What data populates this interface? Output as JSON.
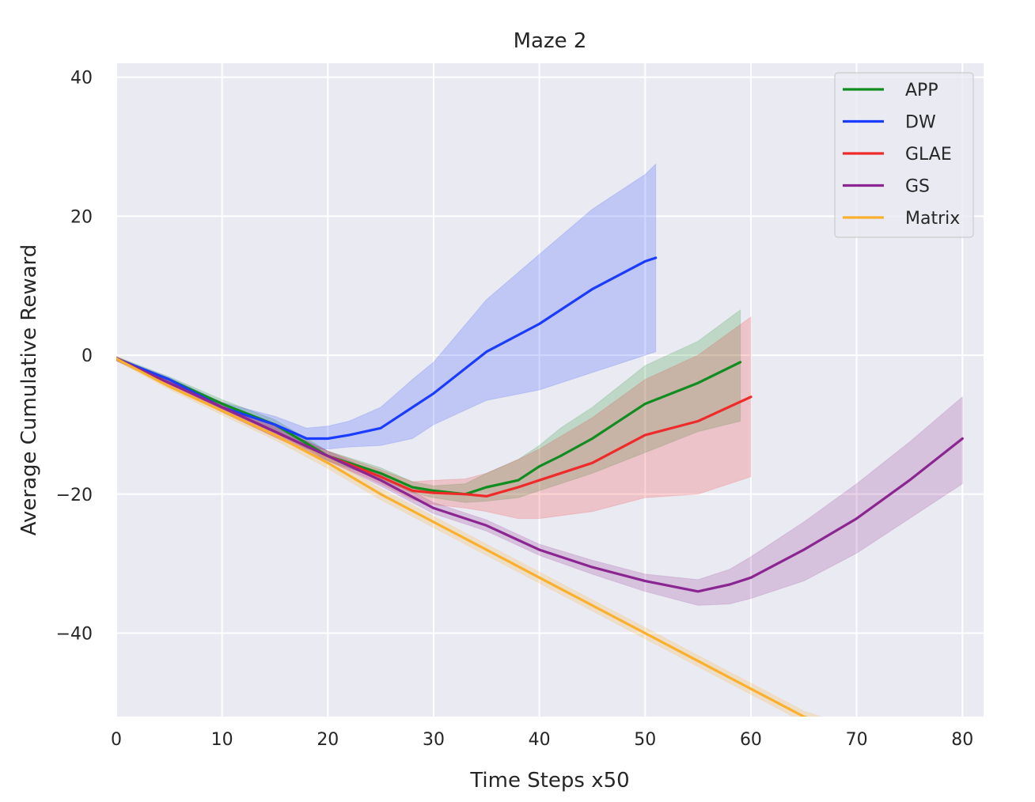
{
  "chart_data": {
    "type": "line",
    "title": "Maze 2",
    "xlabel": "Time Steps x50",
    "ylabel": "Average Cumulative Reward",
    "xlim": [
      0,
      82
    ],
    "ylim": [
      -52,
      42
    ],
    "xticks": [
      0,
      10,
      20,
      30,
      40,
      50,
      60,
      70,
      80
    ],
    "yticks": [
      -40,
      -20,
      0,
      20,
      40
    ],
    "ytick_labels": [
      "−40",
      "−20",
      "0",
      "20",
      "40"
    ],
    "grid": true,
    "legend_position": "top-right",
    "series": [
      {
        "name": "APP",
        "color": "#118c1f",
        "x": [
          0,
          5,
          10,
          15,
          20,
          25,
          28,
          30,
          33,
          35,
          38,
          40,
          42,
          45,
          50,
          55,
          59
        ],
        "values": [
          -0.5,
          -3.5,
          -7,
          -10,
          -14.5,
          -17,
          -19,
          -19.5,
          -20,
          -19,
          -18,
          -16,
          -14.5,
          -12,
          -7,
          -4,
          -1
        ],
        "lower": [
          -0.8,
          -3.9,
          -7.6,
          -10.7,
          -15.2,
          -17.8,
          -19.8,
          -20.5,
          -21.2,
          -21.0,
          -20.5,
          -19.5,
          -18.5,
          -17,
          -14,
          -11,
          -9.5
        ],
        "upper": [
          -0.2,
          -3.1,
          -6.4,
          -9.3,
          -13.8,
          -16.2,
          -18.2,
          -18.8,
          -18.5,
          -17,
          -15,
          -13,
          -10.5,
          -7.5,
          -1.5,
          2,
          6.5
        ]
      },
      {
        "name": "DW",
        "color": "#1a3cff",
        "x": [
          0,
          5,
          10,
          15,
          18,
          20,
          22,
          25,
          28,
          30,
          35,
          40,
          45,
          50,
          51
        ],
        "values": [
          -0.5,
          -3.5,
          -7.5,
          -10,
          -12,
          -12,
          -11.5,
          -10.5,
          -7.5,
          -5.5,
          0.5,
          4.5,
          9.5,
          13.5,
          14
        ],
        "lower": [
          -0.7,
          -3.8,
          -8.2,
          -11.2,
          -13.5,
          -13.5,
          -13.2,
          -13,
          -12,
          -10,
          -6.5,
          -5,
          -2.5,
          0,
          0.5
        ],
        "upper": [
          -0.3,
          -3.2,
          -6.8,
          -8.8,
          -10.5,
          -10.2,
          -9.5,
          -7.5,
          -3.5,
          -1,
          8,
          14.5,
          21,
          26,
          27.5
        ]
      },
      {
        "name": "GLAE",
        "color": "#ee2a2a",
        "x": [
          0,
          5,
          10,
          15,
          20,
          25,
          28,
          30,
          33,
          35,
          38,
          40,
          45,
          50,
          55,
          60
        ],
        "values": [
          -0.5,
          -4,
          -7.5,
          -11,
          -14.5,
          -17.5,
          -19.5,
          -19.8,
          -20,
          -20.3,
          -19,
          -18,
          -15.5,
          -11.5,
          -9.5,
          -6
        ],
        "lower": [
          -0.8,
          -4.4,
          -8.2,
          -11.8,
          -15.2,
          -18.5,
          -20.8,
          -21.5,
          -22,
          -22.5,
          -23.5,
          -23.5,
          -22.5,
          -20.5,
          -20,
          -17.5
        ],
        "upper": [
          -0.2,
          -3.6,
          -6.8,
          -10.2,
          -13.8,
          -16.5,
          -18.2,
          -18,
          -17.8,
          -17,
          -15,
          -13.5,
          -9,
          -3.5,
          0,
          5.5
        ]
      },
      {
        "name": "GS",
        "color": "#8b2591",
        "x": [
          0,
          5,
          10,
          15,
          20,
          25,
          30,
          35,
          40,
          45,
          50,
          55,
          58,
          60,
          65,
          70,
          75,
          80
        ],
        "values": [
          -0.5,
          -4,
          -7.5,
          -11,
          -14.5,
          -18,
          -22,
          -24.5,
          -28,
          -30.5,
          -32.5,
          -34,
          -33,
          -32,
          -28,
          -23.5,
          -18,
          -12
        ],
        "lower": [
          -0.8,
          -4.4,
          -8.2,
          -11.8,
          -15.2,
          -18.8,
          -22.8,
          -25.3,
          -28.8,
          -31.5,
          -34,
          -36,
          -35.8,
          -35,
          -32.5,
          -28.5,
          -23.5,
          -18.5
        ],
        "upper": [
          -0.2,
          -3.6,
          -6.8,
          -10.2,
          -13.8,
          -17.2,
          -21.2,
          -23.7,
          -27.2,
          -29.5,
          -31.5,
          -32.3,
          -30.8,
          -29,
          -24,
          -18.5,
          -12.5,
          -6
        ]
      },
      {
        "name": "Matrix",
        "color": "#fbb02d",
        "x": [
          0,
          5,
          10,
          15,
          20,
          25,
          30,
          35,
          40,
          45,
          50,
          55,
          60,
          65,
          67
        ],
        "values": [
          -0.5,
          -4.5,
          -8,
          -11.5,
          -15.5,
          -20,
          -24,
          -28,
          -32,
          -36,
          -40,
          -44,
          -48,
          -52,
          -53
        ],
        "lower": [
          -0.8,
          -4.9,
          -8.6,
          -12.2,
          -16.3,
          -20.8,
          -24.8,
          -28.8,
          -32.8,
          -36.8,
          -40.8,
          -44.8,
          -48.8,
          -52.8,
          -53.8
        ],
        "upper": [
          -0.2,
          -4.1,
          -7.4,
          -10.8,
          -14.7,
          -19.2,
          -23.2,
          -27.2,
          -31.2,
          -35.2,
          -39.2,
          -43.2,
          -47.2,
          -51.2,
          -52.2
        ]
      }
    ]
  }
}
